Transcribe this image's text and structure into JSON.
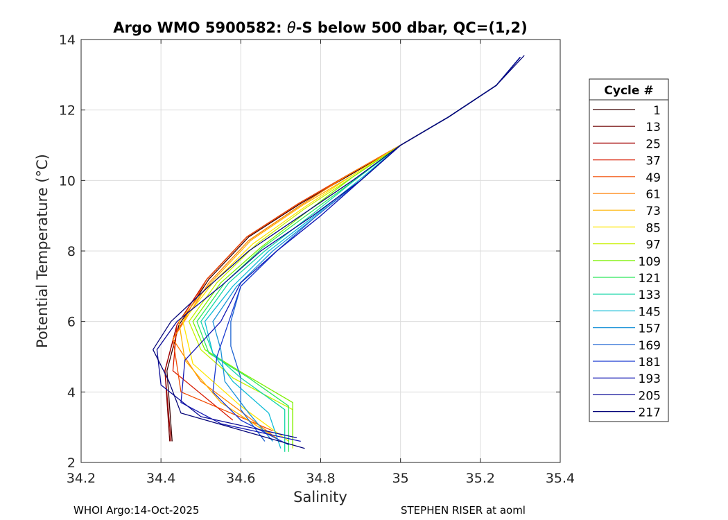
{
  "chart_data": {
    "type": "line",
    "title_prefix": "Argo WMO 5900582: ",
    "title_theta": "θ",
    "title_suffix": "-S below 500 dbar,  QC=(1,2)",
    "xlabel": "Salinity",
    "ylabel": "Potential Temperature (°C)",
    "xlim": [
      34.2,
      35.4
    ],
    "ylim": [
      2,
      14
    ],
    "xticks": [
      34.2,
      34.4,
      34.6,
      34.8,
      35,
      35.2,
      35.4
    ],
    "xtick_labels": [
      "34.2",
      "34.4",
      "34.6",
      "34.8",
      "35",
      "35.2",
      "35.4"
    ],
    "yticks": [
      2,
      4,
      6,
      8,
      10,
      12,
      14
    ],
    "ytick_labels": [
      "2",
      "4",
      "6",
      "8",
      "10",
      "12",
      "14"
    ],
    "grid": true,
    "legend": {
      "title": "Cycle #",
      "placement": "outside-right",
      "entries": [
        "1",
        "13",
        "25",
        "37",
        "49",
        "61",
        "73",
        "85",
        "97",
        "109",
        "121",
        "133",
        "145",
        "157",
        "169",
        "181",
        "193",
        "205",
        "217"
      ],
      "colors": [
        "#3a0000",
        "#6e0000",
        "#a30000",
        "#d81a00",
        "#f24a00",
        "#ff7f00",
        "#ffb300",
        "#ffe600",
        "#c8f000",
        "#7cf000",
        "#2ee85a",
        "#14d6a6",
        "#10bcd6",
        "#1a92d8",
        "#1d63d2",
        "#1a3ad0",
        "#1418b4",
        "#0a0a96",
        "#06067a"
      ]
    },
    "series": [
      {
        "name": "1",
        "salinity": [
          34.428,
          34.415,
          34.445,
          34.52,
          34.62,
          34.75,
          34.88,
          35.0,
          35.12,
          35.24,
          35.3
        ],
        "theta": [
          2.6,
          4.6,
          5.9,
          7.2,
          8.4,
          9.35,
          10.2,
          11.0,
          11.8,
          12.7,
          13.5
        ]
      },
      {
        "name": "13",
        "salinity": [
          34.422,
          34.41,
          34.44,
          34.515,
          34.615,
          34.745,
          34.875,
          35.0,
          35.12,
          35.24,
          35.3
        ],
        "theta": [
          2.6,
          4.6,
          5.9,
          7.2,
          8.4,
          9.35,
          10.2,
          11.0,
          11.8,
          12.7,
          13.5
        ]
      },
      {
        "name": "25",
        "salinity": [
          34.425,
          34.41,
          34.44,
          34.515,
          34.615,
          34.745,
          34.875,
          35.0,
          35.12,
          35.24,
          35.3
        ],
        "theta": [
          2.6,
          4.6,
          5.9,
          7.2,
          8.4,
          9.35,
          10.2,
          11.0,
          11.8,
          12.7,
          13.5
        ]
      },
      {
        "name": "37",
        "salinity": [
          34.58,
          34.43,
          34.44,
          34.515,
          34.615,
          34.745,
          34.875,
          35.0,
          35.12,
          35.24,
          35.3
        ],
        "theta": [
          3.2,
          4.6,
          5.9,
          7.2,
          8.4,
          9.35,
          10.2,
          11.0,
          11.8,
          12.7,
          13.5
        ]
      },
      {
        "name": "49",
        "salinity": [
          34.68,
          34.45,
          34.43,
          34.515,
          34.615,
          34.745,
          34.875,
          35.0,
          35.12,
          35.24,
          35.3
        ],
        "theta": [
          2.9,
          4.0,
          5.5,
          7.2,
          8.4,
          9.35,
          10.2,
          11.0,
          11.8,
          12.7,
          13.5
        ]
      },
      {
        "name": "61",
        "salinity": [
          34.7,
          34.5,
          34.43,
          34.52,
          34.62,
          34.75,
          34.875,
          35.0,
          35.12,
          35.24,
          35.3
        ],
        "theta": [
          2.6,
          4.3,
          5.5,
          7.1,
          8.3,
          9.3,
          10.2,
          11.0,
          11.8,
          12.7,
          13.5
        ]
      },
      {
        "name": "73",
        "salinity": [
          34.7,
          34.55,
          34.46,
          34.445,
          34.525,
          34.625,
          34.755,
          34.88,
          35.0,
          35.12,
          35.24,
          35.3
        ],
        "theta": [
          2.6,
          3.7,
          4.9,
          6.0,
          7.1,
          8.3,
          9.3,
          10.15,
          11.0,
          11.8,
          12.7,
          13.5
        ]
      },
      {
        "name": "85",
        "salinity": [
          34.72,
          34.6,
          34.48,
          34.455,
          34.53,
          34.63,
          34.76,
          34.88,
          35.0,
          35.12,
          35.24,
          35.3
        ],
        "theta": [
          2.6,
          3.6,
          4.8,
          6.0,
          7.1,
          8.2,
          9.25,
          10.15,
          11.0,
          11.8,
          12.7,
          13.5
        ]
      },
      {
        "name": "97",
        "salinity": [
          34.73,
          34.73,
          34.58,
          34.5,
          34.47,
          34.54,
          34.64,
          34.76,
          34.88,
          35.0,
          35.12,
          35.24,
          35.3
        ],
        "theta": [
          2.4,
          3.5,
          4.4,
          5.2,
          6.0,
          7.1,
          8.2,
          9.2,
          10.1,
          11.0,
          11.8,
          12.7,
          13.5
        ]
      },
      {
        "name": "109",
        "salinity": [
          34.73,
          34.73,
          34.61,
          34.51,
          34.48,
          34.55,
          34.65,
          34.77,
          34.88,
          35.0,
          35.12,
          35.24,
          35.3
        ],
        "theta": [
          2.5,
          3.7,
          4.5,
          5.2,
          6.0,
          7.1,
          8.1,
          9.15,
          10.1,
          11.0,
          11.8,
          12.7,
          13.5
        ]
      },
      {
        "name": "121",
        "salinity": [
          34.72,
          34.72,
          34.62,
          34.52,
          34.49,
          34.56,
          34.655,
          34.775,
          34.89,
          35.0,
          35.12,
          35.24,
          35.3
        ],
        "theta": [
          2.3,
          3.6,
          4.4,
          5.1,
          6.0,
          7.1,
          8.1,
          9.1,
          10.05,
          11.0,
          11.8,
          12.7,
          13.5
        ]
      },
      {
        "name": "133",
        "salinity": [
          34.71,
          34.71,
          34.6,
          34.53,
          34.5,
          34.57,
          34.66,
          34.78,
          34.89,
          35.0,
          35.12,
          35.24,
          35.3
        ],
        "theta": [
          2.3,
          3.5,
          4.4,
          5.1,
          6.0,
          7.1,
          8.0,
          9.05,
          10.05,
          11.0,
          11.8,
          12.7,
          13.5
        ]
      },
      {
        "name": "145",
        "salinity": [
          34.7,
          34.67,
          34.58,
          34.53,
          34.51,
          34.58,
          34.67,
          34.785,
          34.895,
          35.0,
          35.12,
          35.24,
          35.3
        ],
        "theta": [
          2.4,
          3.4,
          4.3,
          5.1,
          6.0,
          7.0,
          8.0,
          9.0,
          10.0,
          11.0,
          11.8,
          12.7,
          13.5
        ]
      },
      {
        "name": "157",
        "salinity": [
          34.68,
          34.62,
          34.56,
          34.55,
          34.53,
          34.59,
          34.68,
          34.79,
          34.9,
          35.0,
          35.12,
          35.24,
          35.3
        ],
        "theta": [
          2.6,
          3.4,
          4.3,
          5.2,
          6.0,
          7.0,
          8.0,
          9.0,
          10.0,
          11.0,
          11.8,
          12.7,
          13.5
        ]
      },
      {
        "name": "169",
        "salinity": [
          34.66,
          34.6,
          34.6,
          34.575,
          34.575,
          34.6,
          34.69,
          34.79,
          34.9,
          35.0,
          35.12,
          35.24,
          35.3
        ],
        "theta": [
          2.6,
          3.5,
          4.4,
          5.3,
          6.0,
          7.0,
          8.0,
          9.0,
          10.0,
          11.0,
          11.8,
          12.7,
          13.5
        ]
      },
      {
        "name": "181",
        "salinity": [
          34.72,
          34.6,
          34.53,
          34.54,
          34.57,
          34.6,
          34.69,
          34.8,
          34.9,
          35.0,
          35.12,
          35.24,
          35.3
        ],
        "theta": [
          2.5,
          3.2,
          4.0,
          5.0,
          6.0,
          7.0,
          8.0,
          9.0,
          10.0,
          11.0,
          11.8,
          12.7,
          13.5
        ]
      },
      {
        "name": "193",
        "salinity": [
          34.75,
          34.55,
          34.45,
          34.46,
          34.55,
          34.6,
          34.69,
          34.8,
          34.9,
          35.0,
          35.12,
          35.24,
          35.3
        ],
        "theta": [
          2.6,
          3.1,
          3.7,
          4.9,
          6.0,
          7.1,
          8.0,
          9.0,
          10.0,
          11.0,
          11.8,
          12.7,
          13.5
        ]
      },
      {
        "name": "205",
        "salinity": [
          34.74,
          34.5,
          34.4,
          34.39,
          34.44,
          34.55,
          34.65,
          34.78,
          34.9,
          35.0,
          35.12,
          35.24,
          35.3
        ],
        "theta": [
          2.7,
          3.3,
          4.2,
          5.2,
          6.0,
          7.0,
          8.0,
          9.0,
          10.0,
          11.0,
          11.8,
          12.7,
          13.5
        ]
      },
      {
        "name": "217",
        "salinity": [
          34.76,
          34.45,
          34.42,
          34.38,
          34.425,
          34.52,
          34.62,
          34.75,
          34.88,
          35.0,
          35.12,
          35.24,
          35.31
        ],
        "theta": [
          2.4,
          3.4,
          4.3,
          5.2,
          6.0,
          7.0,
          8.0,
          9.0,
          10.0,
          11.0,
          11.8,
          12.7,
          13.55
        ]
      }
    ]
  },
  "footer": {
    "left": "WHOI Argo:14-Oct-2025",
    "right": "STEPHEN RISER at aoml"
  }
}
